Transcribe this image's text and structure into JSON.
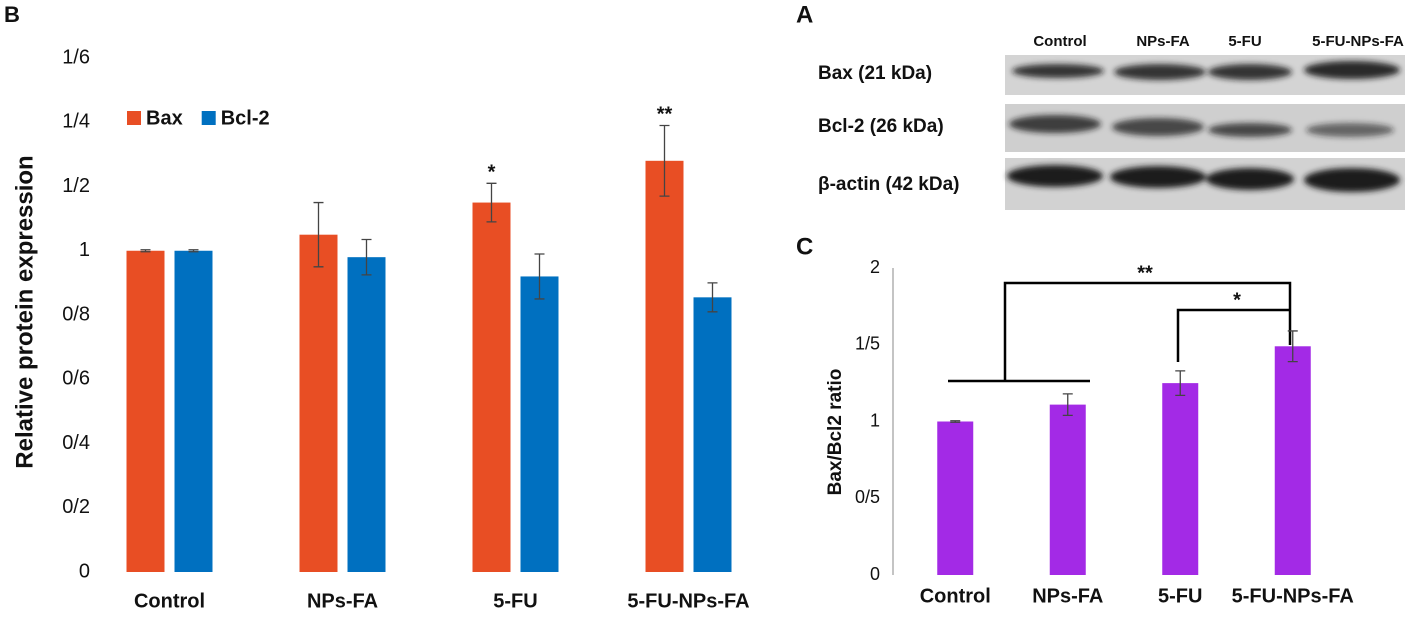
{
  "chart_data": [
    {
      "panel": "B",
      "type": "bar",
      "y_label": "Relative protein expression",
      "categories": [
        "Control",
        "NPs-FA",
        "5-FU",
        "5-FU-NPs-FA"
      ],
      "series": [
        {
          "name": "Bax",
          "color": "#e84e24",
          "values": [
            1,
            1.05,
            1.15,
            1.28
          ],
          "errors": [
            0.003,
            0.1,
            0.06,
            0.11
          ],
          "significance": [
            null,
            null,
            "*",
            "**"
          ]
        },
        {
          "name": "Bcl-2",
          "color": "#0070c0",
          "values": [
            1,
            0.98,
            0.92,
            0.855
          ],
          "errors": [
            0.003,
            0.055,
            0.07,
            0.045
          ]
        }
      ],
      "ylim": [
        0,
        1.6
      ],
      "yticks": [
        0,
        {
          "value": 0.2,
          "label": "0/2"
        },
        {
          "value": 0.4,
          "label": "0/4"
        },
        {
          "value": 0.6,
          "label": "0/6"
        },
        {
          "value": 0.8,
          "label": "0/8"
        },
        1,
        {
          "value": 1.2,
          "label": "1/2"
        },
        {
          "value": 1.4,
          "label": "1/4"
        },
        {
          "value": 1.6,
          "label": "1/6"
        }
      ],
      "legend": "upper left"
    },
    {
      "panel": "C",
      "type": "bar",
      "y_label": "Bax/Bcl2 ratio",
      "categories": [
        "Control",
        "NPs-FA",
        "5-FU",
        "5-FU-NPs-FA"
      ],
      "values": [
        1,
        1.11,
        1.25,
        1.49
      ],
      "errors": [
        0.005,
        0.07,
        0.08,
        0.1
      ],
      "color": "#a32ae6",
      "ylim": [
        0,
        2
      ],
      "yticks": [
        0,
        {
          "value": 0.5,
          "label": "0/5"
        },
        1,
        {
          "value": 1.5,
          "label": "1/5"
        },
        2
      ],
      "comparisons": [
        "**",
        "*"
      ]
    }
  ],
  "blot": {
    "panel": "A",
    "lanes": [
      "Control",
      "NPs-FA",
      "5-FU",
      "5-FU-NPs-FA"
    ],
    "rows": [
      "Bax (21 kDa)",
      "Bcl-2 (26 kDa)",
      "β-actin (42 kDa)"
    ]
  }
}
